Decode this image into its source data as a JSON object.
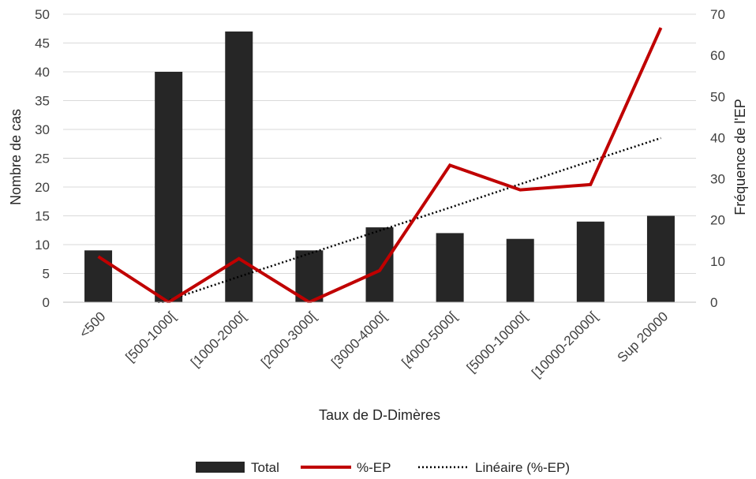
{
  "chart_data": {
    "type": "bar",
    "xlabel": "Taux de D-Dimères",
    "ylabel": "Nombre de cas",
    "y2label": "Fréquence de l'EP",
    "categories": [
      "<500",
      "[500-1000[",
      "[1000-2000[",
      "[2000-3000[",
      "[3000-4000[",
      "[4000-5000[",
      "[5000-10000[",
      "[10000-20000[",
      "Sup 20000"
    ],
    "ylim": [
      0,
      50
    ],
    "yticks": [
      "0",
      "5",
      "10",
      "15",
      "20",
      "25",
      "30",
      "35",
      "40",
      "45",
      "50"
    ],
    "y2lim": [
      0,
      70
    ],
    "y2ticks": [
      "0",
      "10",
      "20",
      "30",
      "40",
      "50",
      "60",
      "70"
    ],
    "grid": true,
    "legend_position": "bottom",
    "series": [
      {
        "name": "Total",
        "type": "bar",
        "axis": "left",
        "color": "#262626",
        "values": [
          9,
          40,
          47,
          9,
          13,
          12,
          11,
          14,
          15
        ]
      },
      {
        "name": "%-EP",
        "type": "line",
        "axis": "right",
        "color": "#c00000",
        "values": [
          11.1,
          0,
          10.6,
          0,
          7.7,
          33.3,
          27.3,
          28.6,
          66.7
        ]
      },
      {
        "name": "Linéaire (%-EP)",
        "type": "trendline",
        "axis": "right",
        "color": "#000000",
        "values": [
          -5.1,
          0.5,
          6.2,
          11.8,
          17.4,
          23.0,
          28.7,
          34.3,
          39.9
        ]
      }
    ]
  }
}
